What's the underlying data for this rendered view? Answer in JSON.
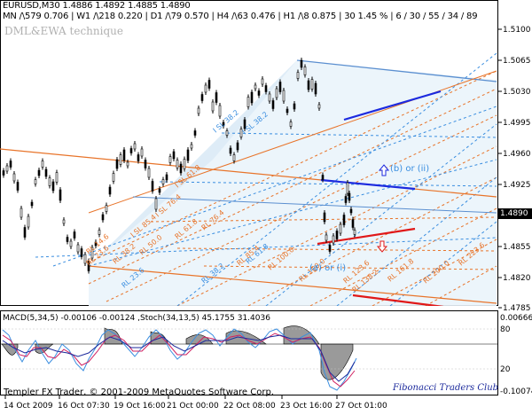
{
  "header": {
    "line1": "EURUSD,M30  1.4886 1.4892 1.4885 1.4890",
    "line2": "MN /\\579  0.706 | W1 /\\218  0.220 | D1 /\\79  0.570 | H4 /\\63  0.476 | H1 /\\8  0.875 | 30  1.45 % | 6 / 30 / 55 / 34 / 89"
  },
  "watermark": "DML&EWA technique",
  "current_price": "1.4890",
  "price_axis": [
    "1.5100",
    "1.5065",
    "1.5030",
    "1.4995",
    "1.4960",
    "1.4925",
    "1.4855",
    "1.4820",
    "1.4785"
  ],
  "time_axis": [
    "14 Oct 2009",
    "16 Oct 07:30",
    "19 Oct 16:00",
    "21 Oct 00:00",
    "22 Oct 08:00",
    "23 Oct 16:00",
    "27 Oct 01:00"
  ],
  "wave_labels": [
    "(b)  or (ii)",
    "(a)  or (i)"
  ],
  "fib_labels": [
    "I SL 38.2",
    "I SL 61.8",
    "I SL 76.4",
    "I SL 85.4",
    "I SL 38.2",
    "RL 14.6",
    "RL 23.6",
    "RL 38.2",
    "RL 50.0",
    "RL 61.8",
    "RL 76.4",
    "RL 85.4",
    "RL 100.0",
    "RL 23.6",
    "RL 38.2",
    "RL 61.8",
    "RL 100.0",
    "RL 123.6",
    "RL 138.2",
    "RL 161.8",
    "RL 200.0",
    "RL 223.6"
  ],
  "indicator": {
    "header": "MACD(5,34,5) -0.00106 -0.00124 ,Stoch(34,13,5) 45.1755 31.4036",
    "axis": [
      "0.00666",
      "80",
      "20",
      "-0.10074"
    ]
  },
  "footer": {
    "copyright": "Templer FX Trader, © 2001-2009 MetaQuotes Software Corp.",
    "club": "Fibonacci Traders Club"
  },
  "colors": {
    "candles": "#000000",
    "fib_orange": "#e8742a",
    "fib_blue": "#3a8ee0",
    "trend_blue": "#1c2adf",
    "trend_red": "#e01818",
    "macd_fill": "#9a9a9a"
  }
}
